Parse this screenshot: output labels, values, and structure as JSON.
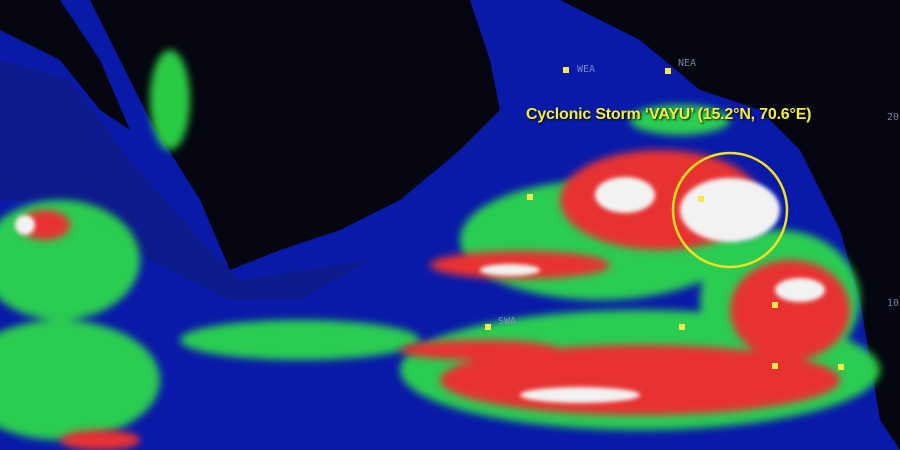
{
  "caption": "Cyclonic Storm ‘VAYU’ (15.2°N, 70.6°E)",
  "storm": {
    "name": "VAYU",
    "lat": "15.2°N",
    "lon": "70.6°E"
  },
  "region_labels": {
    "wea": "WEA",
    "nea": "NEA",
    "swa": "SWA",
    "lat20": "20",
    "lat10": "10"
  },
  "colors": {
    "ocean": "#0a1aa8",
    "land": "#05060f",
    "low_cloud": "#2ee04a",
    "mid_cloud": "#e83030",
    "high_cloud": "#f2f2f2",
    "marker": "#f4e84a",
    "highlight_circle": "#f4e020"
  }
}
